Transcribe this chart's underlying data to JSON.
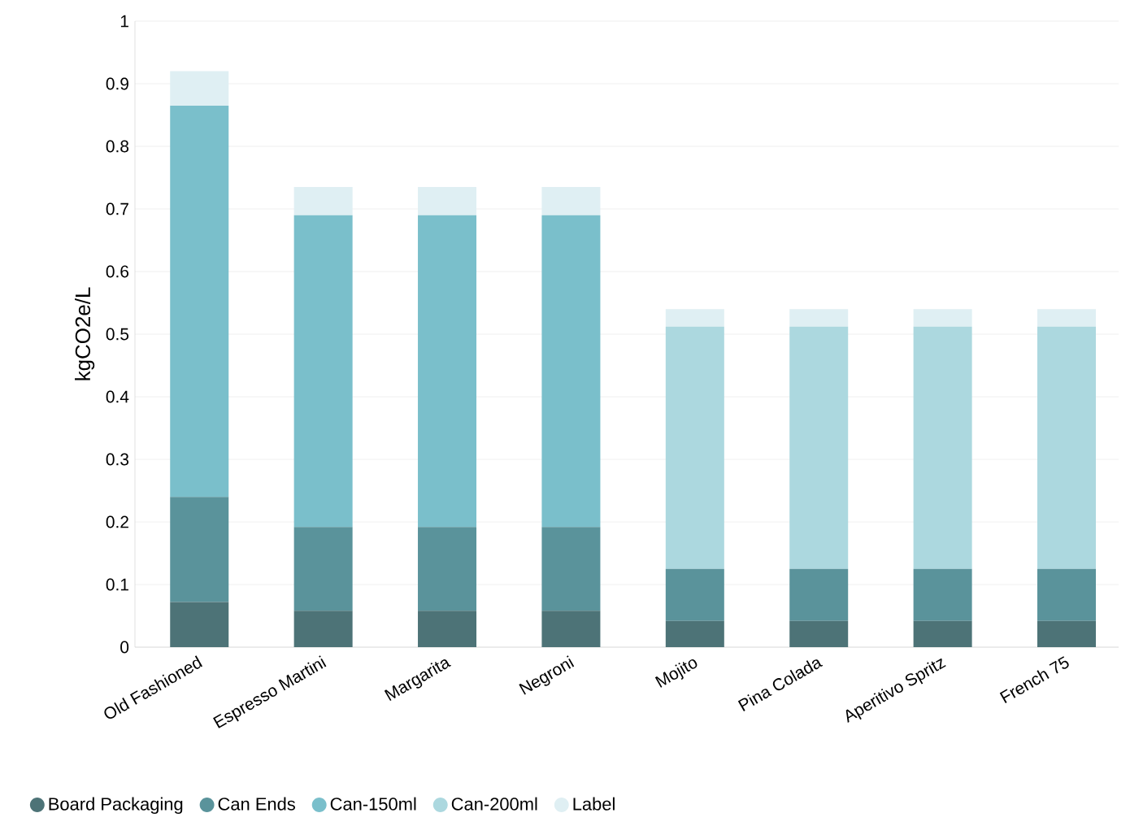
{
  "chart_data": {
    "type": "bar",
    "stacked": true,
    "ylabel": "kgCO2e/L",
    "categories": [
      "Old Fashioned",
      "Espresso Martini",
      "Margarita",
      "Negroni",
      "Mojito",
      "Pina Colada",
      "Aperitivo Spritz",
      "French 75"
    ],
    "series": [
      {
        "name": "Board Packaging",
        "color": "#4d7377",
        "values": [
          0.072,
          0.058,
          0.058,
          0.058,
          0.042,
          0.042,
          0.042,
          0.042
        ]
      },
      {
        "name": "Can Ends",
        "color": "#5a939b",
        "values": [
          0.168,
          0.134,
          0.134,
          0.134,
          0.083,
          0.083,
          0.083,
          0.083
        ]
      },
      {
        "name": "Can-150ml",
        "color": "#7abfcb",
        "values": [
          0.625,
          0.498,
          0.498,
          0.498,
          null,
          null,
          null,
          null
        ]
      },
      {
        "name": "Can-200ml",
        "color": "#acd8df",
        "values": [
          null,
          null,
          null,
          null,
          0.387,
          0.387,
          0.387,
          0.387
        ]
      },
      {
        "name": "Label",
        "color": "#dfeff3",
        "values": [
          0.055,
          0.045,
          0.045,
          0.045,
          0.028,
          0.028,
          0.028,
          0.028
        ]
      }
    ],
    "ylim": [
      0,
      1
    ],
    "yticks": [
      0,
      0.1,
      0.2,
      0.3,
      0.4,
      0.5,
      0.6,
      0.7,
      0.8,
      0.9,
      1
    ],
    "grid": "y",
    "legend": "bottom"
  }
}
